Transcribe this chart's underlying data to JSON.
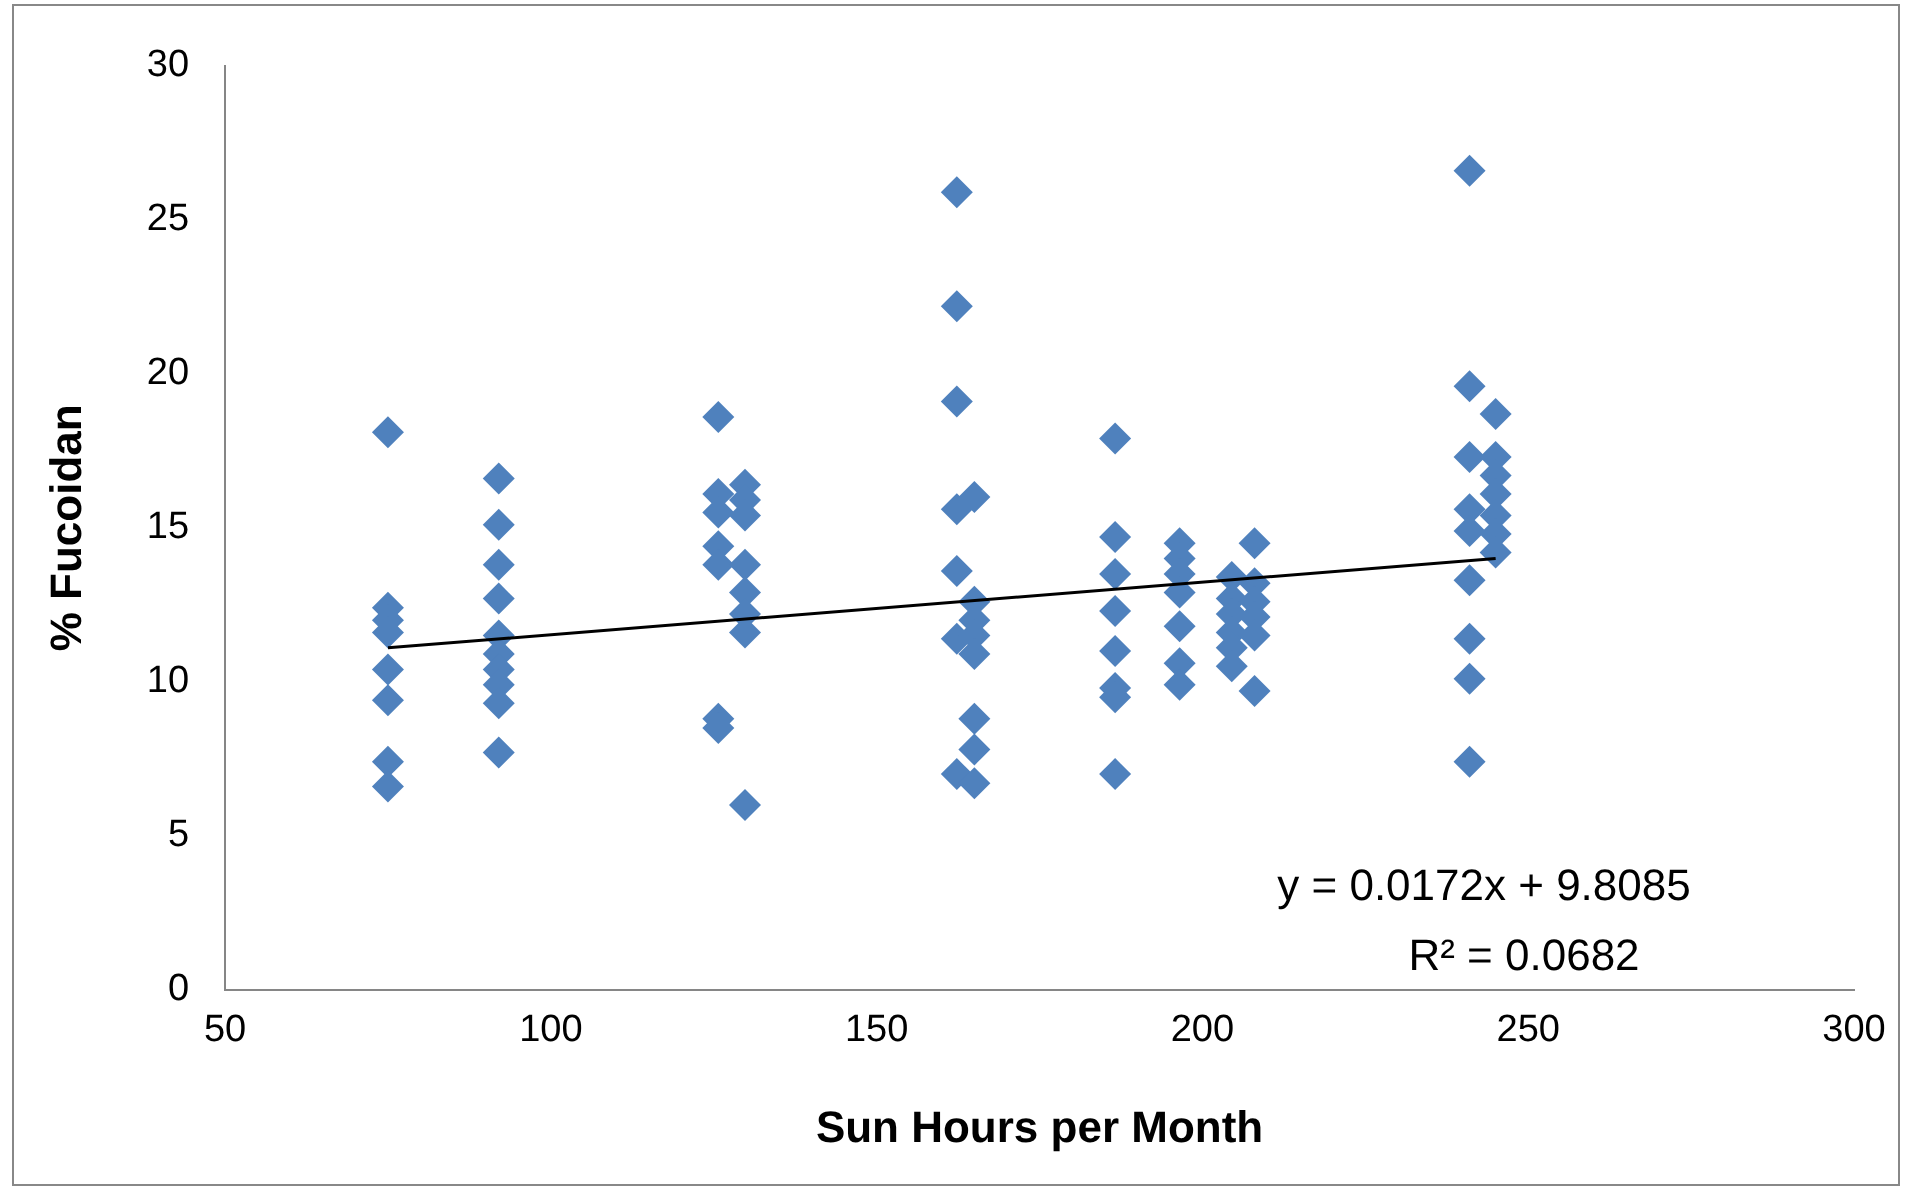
{
  "chart_data": {
    "type": "scatter",
    "xlabel": "Sun Hours per Month",
    "ylabel": "% Fucoidan",
    "xlim": [
      50,
      300
    ],
    "xticks": [
      50,
      100,
      150,
      200,
      250,
      300
    ],
    "ylim": [
      0,
      30
    ],
    "yticks": [
      0,
      5,
      10,
      15,
      20,
      25,
      30
    ],
    "grid": false,
    "legend": false,
    "marker": "diamond",
    "annotations": [
      "y = 0.0172x + 9.8085",
      "R² = 0.0682"
    ],
    "series": [
      {
        "type": "scatter",
        "color": "#4f81bd",
        "x": [
          75,
          75,
          75,
          75,
          75,
          75,
          75,
          75,
          92,
          92,
          92,
          92,
          92,
          92,
          92,
          92,
          92,
          92,
          125.7,
          125.7,
          125.7,
          125.7,
          125.7,
          125.7,
          125.7,
          129.8,
          129.8,
          129.8,
          129.8,
          129.8,
          129.8,
          129.8,
          129.8,
          162.3,
          162.3,
          162.3,
          162.3,
          162.3,
          162.3,
          162.3,
          165,
          165,
          165,
          165,
          165,
          165,
          165,
          165,
          186.6,
          186.6,
          186.6,
          186.6,
          186.6,
          186.6,
          186.6,
          186.6,
          196.5,
          196.5,
          196.5,
          196.5,
          196.5,
          196.5,
          196.5,
          204.5,
          204.5,
          204.5,
          204.5,
          204.5,
          204.5,
          208,
          208,
          208,
          208,
          208,
          208,
          241,
          241,
          241,
          241,
          241,
          241,
          241,
          241,
          241,
          245,
          245,
          245,
          245,
          245,
          245,
          245
        ],
        "values": [
          18.1,
          12.4,
          12.0,
          11.6,
          10.4,
          9.4,
          7.4,
          6.6,
          16.6,
          15.1,
          13.8,
          12.7,
          11.5,
          10.9,
          10.4,
          9.9,
          9.3,
          7.7,
          18.6,
          16.1,
          15.5,
          14.4,
          13.8,
          8.8,
          8.5,
          16.4,
          15.9,
          15.4,
          13.8,
          12.9,
          12.2,
          11.6,
          6.0,
          25.9,
          22.2,
          19.1,
          15.6,
          13.6,
          11.4,
          7.0,
          16.0,
          12.6,
          12.0,
          11.5,
          10.9,
          8.8,
          7.8,
          6.7,
          17.9,
          14.7,
          13.5,
          12.3,
          11.0,
          9.8,
          9.5,
          7.0,
          14.5,
          14.0,
          13.5,
          12.9,
          11.8,
          10.6,
          9.9,
          13.4,
          12.7,
          12.2,
          11.6,
          11.1,
          10.5,
          14.5,
          13.2,
          12.6,
          12.1,
          11.5,
          9.7,
          26.6,
          19.6,
          17.3,
          15.6,
          14.9,
          13.3,
          11.4,
          10.1,
          7.4,
          18.7,
          17.3,
          16.7,
          16.1,
          15.4,
          14.8,
          14.2
        ]
      },
      {
        "type": "line",
        "color": "#000000",
        "marker": "none",
        "x": [
          75,
          245
        ],
        "values": [
          11.1,
          14.0
        ]
      }
    ]
  }
}
